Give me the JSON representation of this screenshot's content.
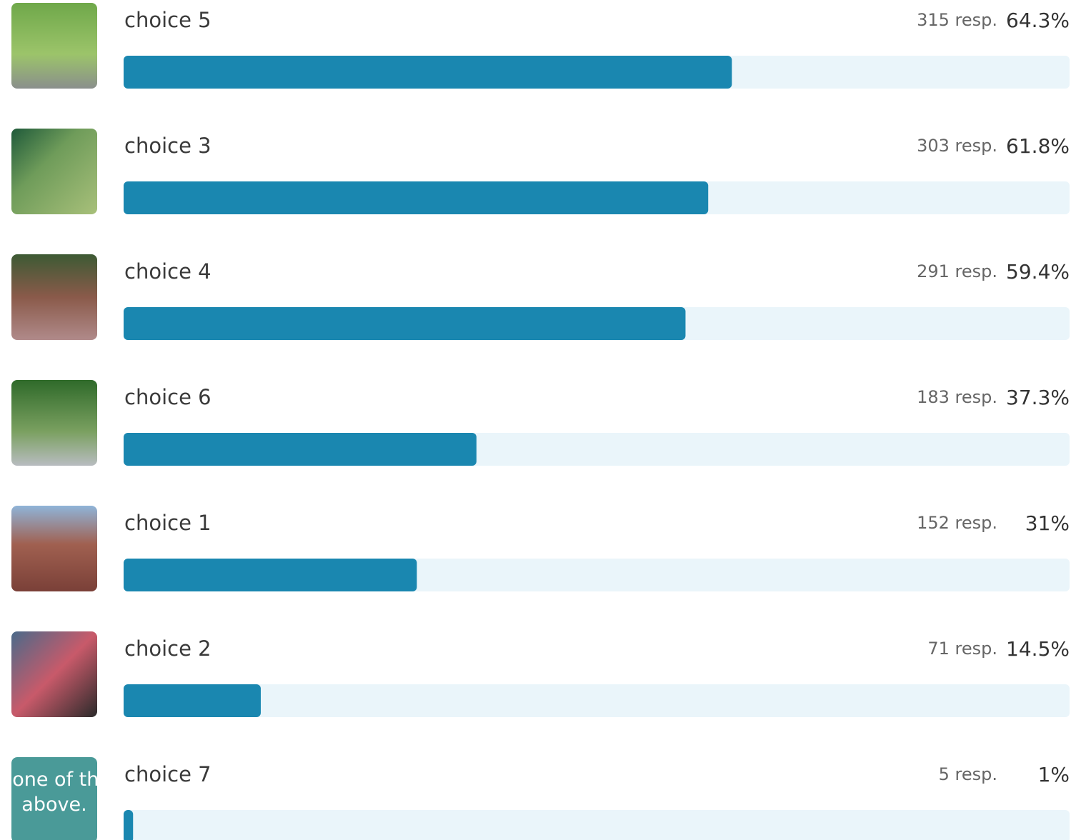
{
  "chart_data": {
    "type": "bar",
    "orientation": "horizontal",
    "categories": [
      "choice 5",
      "choice 3",
      "choice 4",
      "choice 6",
      "choice 1",
      "choice 2",
      "choice 7"
    ],
    "values": [
      64.3,
      61.8,
      59.4,
      37.3,
      31,
      14.5,
      1
    ],
    "value_labels": [
      "64.3%",
      "61.8%",
      "59.4%",
      "37.3%",
      "31%",
      "14.5%",
      "1%"
    ],
    "responses": [
      "315 resp.",
      "303 resp.",
      "291 resp.",
      "183 resp.",
      "152 resp.",
      "71 resp.",
      "5 resp."
    ],
    "xlim": [
      0,
      100
    ],
    "color": "#1a87b0",
    "track_color": "#eaf5fa"
  },
  "thumbnail_text": "None of the above."
}
